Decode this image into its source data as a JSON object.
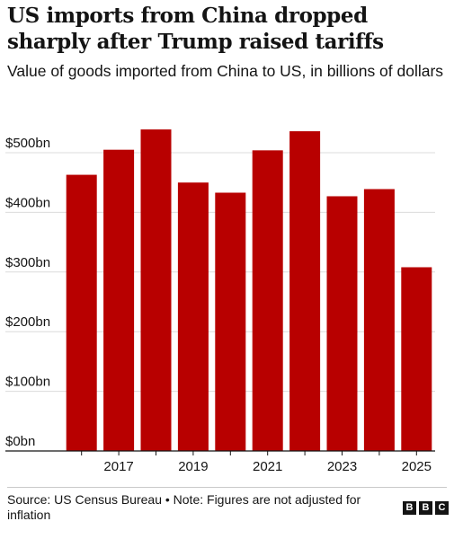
{
  "header": {
    "title": "US imports from China dropped sharply after Trump raised tariffs",
    "subtitle": "Value of goods imported from China to US, in billions of dollars"
  },
  "chart_data": {
    "type": "bar",
    "categories": [
      "2016",
      "2017",
      "2018",
      "2019",
      "2020",
      "2021",
      "2022",
      "2023",
      "2024",
      "2025"
    ],
    "values": [
      463,
      505,
      539,
      450,
      433,
      504,
      536,
      427,
      439,
      308
    ],
    "x_tick_labels": [
      "2017",
      "2019",
      "2021",
      "2023",
      "2025"
    ],
    "y_ticks": [
      {
        "value": 0,
        "label": "$0bn"
      },
      {
        "value": 100,
        "label": "$100bn"
      },
      {
        "value": 200,
        "label": "$200bn"
      },
      {
        "value": 300,
        "label": "$300bn"
      },
      {
        "value": 400,
        "label": "$400bn"
      },
      {
        "value": 500,
        "label": "$500bn"
      }
    ],
    "ylim": [
      0,
      550
    ],
    "grid": true,
    "bar_color": "#b80000"
  },
  "footer": {
    "source": "Source: US Census Bureau • Note: Figures are not adjusted for inflation",
    "logo_letters": [
      "B",
      "B",
      "C"
    ]
  }
}
